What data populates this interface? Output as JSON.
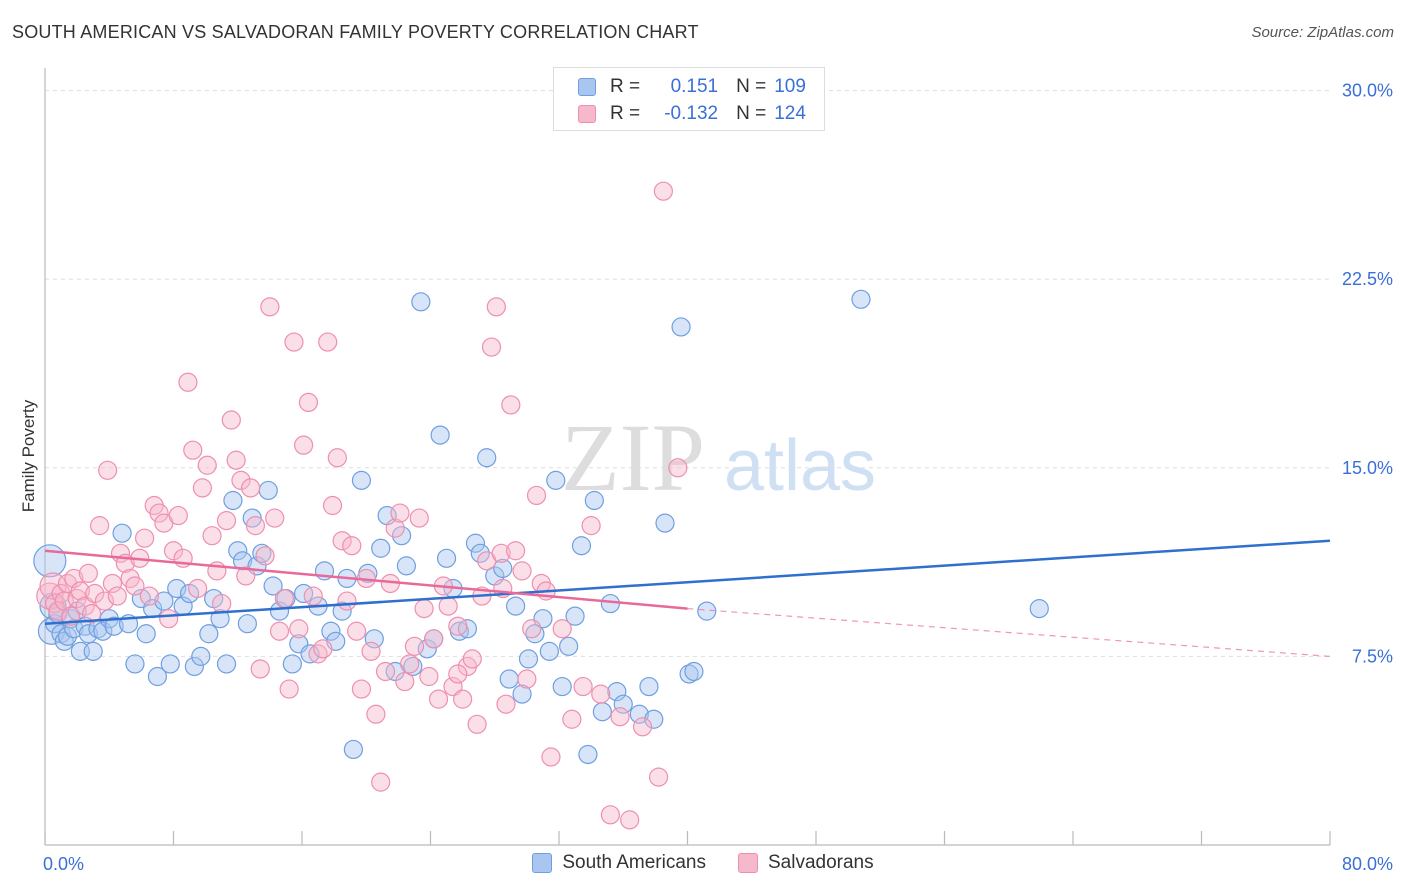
{
  "header": {
    "title": "SOUTH AMERICAN VS SALVADORAN FAMILY POVERTY CORRELATION CHART",
    "source": "Source: ZipAtlas.com"
  },
  "watermark": {
    "zip": "ZIP",
    "atlas": "atlas"
  },
  "legend": {
    "rows": [
      {
        "r_label": "R =",
        "r_value": "0.151",
        "n_label": "N =",
        "n_value": "109"
      },
      {
        "r_label": "R =",
        "r_value": "-0.132",
        "n_label": "N =",
        "n_value": "124"
      }
    ]
  },
  "bottom_legend": {
    "items": [
      "South Americans",
      "Salvadorans"
    ]
  },
  "colors": {
    "blue_fill": "#a8c6f0",
    "blue_stroke": "#6f9fe0",
    "blue_line": "#2f6fcf",
    "pink_fill": "#f6b8cb",
    "pink_stroke": "#ee8fae",
    "pink_line": "#e8699a",
    "axis_text": "#3a6fd8",
    "grid": "#dddddd"
  },
  "chart_data": {
    "type": "scatter",
    "title": "SOUTH AMERICAN VS SALVADORAN FAMILY POVERTY CORRELATION CHART",
    "xlabel": "",
    "ylabel": "Family Poverty",
    "xlim": [
      0,
      80
    ],
    "ylim": [
      0,
      30.5
    ],
    "x_tick_labels": [
      "0.0%",
      "80.0%"
    ],
    "y_ticks": [
      7.5,
      15.0,
      22.5,
      30.0
    ],
    "y_tick_labels": [
      "7.5%",
      "15.0%",
      "22.5%",
      "30.0%"
    ],
    "grid": "horizontal dashed",
    "legend_position": "top-center",
    "series": [
      {
        "name": "South Americans",
        "color": "#a8c6f0",
        "trend": {
          "x": [
            0,
            80
          ],
          "y": [
            8.8,
            12.1
          ],
          "style": "solid"
        },
        "points": [
          [
            0.3,
            11.3
          ],
          [
            0.4,
            8.5
          ],
          [
            0.5,
            9.5
          ],
          [
            0.6,
            8.8
          ],
          [
            0.8,
            9.2
          ],
          [
            1.0,
            8.4
          ],
          [
            1.2,
            8.1
          ],
          [
            1.4,
            8.3
          ],
          [
            1.6,
            9.0
          ],
          [
            1.8,
            8.6
          ],
          [
            2.0,
            9.3
          ],
          [
            2.2,
            7.7
          ],
          [
            2.5,
            8.7
          ],
          [
            2.7,
            8.4
          ],
          [
            3.0,
            7.7
          ],
          [
            3.3,
            8.6
          ],
          [
            3.6,
            8.5
          ],
          [
            4.0,
            9.0
          ],
          [
            4.3,
            8.7
          ],
          [
            4.8,
            12.4
          ],
          [
            5.2,
            8.8
          ],
          [
            5.6,
            7.2
          ],
          [
            6.0,
            9.8
          ],
          [
            6.3,
            8.4
          ],
          [
            6.7,
            9.4
          ],
          [
            7.0,
            6.7
          ],
          [
            7.4,
            9.7
          ],
          [
            7.8,
            7.2
          ],
          [
            8.2,
            10.2
          ],
          [
            8.6,
            9.5
          ],
          [
            9.0,
            10.0
          ],
          [
            9.3,
            7.1
          ],
          [
            9.7,
            7.5
          ],
          [
            10.2,
            8.4
          ],
          [
            10.5,
            9.8
          ],
          [
            10.9,
            9.0
          ],
          [
            11.3,
            7.2
          ],
          [
            11.7,
            13.7
          ],
          [
            12.0,
            11.7
          ],
          [
            12.3,
            11.3
          ],
          [
            12.6,
            8.8
          ],
          [
            12.9,
            13.0
          ],
          [
            13.2,
            11.1
          ],
          [
            13.5,
            11.6
          ],
          [
            13.9,
            14.1
          ],
          [
            14.2,
            10.3
          ],
          [
            14.6,
            9.3
          ],
          [
            15.0,
            9.8
          ],
          [
            15.4,
            7.2
          ],
          [
            15.8,
            8.0
          ],
          [
            16.1,
            10.0
          ],
          [
            16.5,
            7.6
          ],
          [
            17.0,
            9.5
          ],
          [
            17.4,
            10.9
          ],
          [
            17.8,
            8.5
          ],
          [
            18.1,
            8.1
          ],
          [
            18.5,
            9.3
          ],
          [
            18.8,
            10.6
          ],
          [
            19.2,
            3.8
          ],
          [
            19.7,
            14.5
          ],
          [
            20.1,
            10.8
          ],
          [
            20.5,
            8.2
          ],
          [
            20.9,
            11.8
          ],
          [
            21.3,
            13.1
          ],
          [
            21.8,
            6.9
          ],
          [
            22.2,
            12.3
          ],
          [
            22.5,
            11.1
          ],
          [
            22.9,
            7.1
          ],
          [
            23.4,
            21.6
          ],
          [
            23.8,
            7.8
          ],
          [
            24.2,
            8.2
          ],
          [
            24.6,
            16.3
          ],
          [
            25.0,
            11.4
          ],
          [
            25.4,
            10.2
          ],
          [
            25.8,
            8.5
          ],
          [
            26.3,
            8.6
          ],
          [
            26.8,
            12.0
          ],
          [
            27.1,
            11.6
          ],
          [
            27.5,
            15.4
          ],
          [
            28.0,
            10.7
          ],
          [
            28.5,
            11.0
          ],
          [
            28.9,
            6.6
          ],
          [
            29.3,
            9.5
          ],
          [
            29.7,
            6.0
          ],
          [
            30.1,
            7.4
          ],
          [
            30.5,
            8.4
          ],
          [
            31.0,
            9.0
          ],
          [
            31.4,
            7.7
          ],
          [
            31.8,
            14.5
          ],
          [
            32.2,
            6.3
          ],
          [
            32.6,
            7.9
          ],
          [
            33.0,
            9.1
          ],
          [
            33.4,
            11.9
          ],
          [
            33.8,
            3.6
          ],
          [
            34.2,
            13.7
          ],
          [
            34.7,
            5.3
          ],
          [
            35.2,
            9.6
          ],
          [
            35.6,
            6.1
          ],
          [
            36.0,
            5.6
          ],
          [
            37.0,
            5.2
          ],
          [
            37.6,
            6.3
          ],
          [
            38.6,
            12.8
          ],
          [
            39.6,
            20.6
          ],
          [
            40.1,
            6.8
          ],
          [
            40.4,
            6.9
          ],
          [
            41.2,
            9.3
          ],
          [
            50.8,
            21.7
          ],
          [
            61.9,
            9.4
          ],
          [
            37.9,
            5.0
          ]
        ]
      },
      {
        "name": "Salvadorans",
        "color": "#f6b8cb",
        "trend": {
          "x": [
            0,
            40
          ],
          "y": [
            11.7,
            9.4
          ],
          "style": "solid",
          "extension": {
            "x": [
              40,
              80
            ],
            "y": [
              9.4,
              7.5
            ],
            "style": "dashed"
          }
        },
        "points": [
          [
            0.3,
            9.9
          ],
          [
            0.5,
            10.3
          ],
          [
            0.6,
            9.6
          ],
          [
            0.8,
            9.3
          ],
          [
            1.0,
            10.0
          ],
          [
            1.2,
            9.7
          ],
          [
            1.4,
            10.4
          ],
          [
            1.6,
            9.1
          ],
          [
            1.8,
            10.6
          ],
          [
            2.0,
            9.8
          ],
          [
            2.2,
            10.1
          ],
          [
            2.5,
            9.5
          ],
          [
            2.7,
            10.8
          ],
          [
            2.9,
            9.2
          ],
          [
            3.1,
            10.0
          ],
          [
            3.4,
            12.7
          ],
          [
            3.7,
            9.7
          ],
          [
            3.9,
            14.9
          ],
          [
            4.2,
            10.4
          ],
          [
            4.5,
            9.9
          ],
          [
            4.7,
            11.6
          ],
          [
            5.0,
            11.2
          ],
          [
            5.3,
            10.6
          ],
          [
            5.6,
            10.3
          ],
          [
            5.9,
            11.4
          ],
          [
            6.2,
            12.2
          ],
          [
            6.5,
            9.9
          ],
          [
            6.8,
            13.5
          ],
          [
            7.1,
            13.2
          ],
          [
            7.4,
            12.8
          ],
          [
            7.7,
            9.0
          ],
          [
            8.0,
            11.7
          ],
          [
            8.3,
            13.1
          ],
          [
            8.6,
            11.4
          ],
          [
            8.9,
            18.4
          ],
          [
            9.2,
            15.7
          ],
          [
            9.5,
            10.2
          ],
          [
            9.8,
            14.2
          ],
          [
            10.1,
            15.1
          ],
          [
            10.4,
            12.3
          ],
          [
            10.7,
            10.9
          ],
          [
            11.0,
            9.6
          ],
          [
            11.3,
            12.9
          ],
          [
            11.6,
            16.9
          ],
          [
            11.9,
            15.3
          ],
          [
            12.2,
            14.5
          ],
          [
            12.5,
            10.7
          ],
          [
            12.8,
            14.2
          ],
          [
            13.1,
            12.7
          ],
          [
            13.4,
            7.0
          ],
          [
            13.7,
            11.5
          ],
          [
            14.0,
            21.4
          ],
          [
            14.3,
            13.0
          ],
          [
            14.6,
            8.5
          ],
          [
            14.9,
            9.8
          ],
          [
            15.2,
            6.2
          ],
          [
            15.5,
            20.0
          ],
          [
            15.8,
            8.6
          ],
          [
            16.1,
            15.9
          ],
          [
            16.4,
            17.6
          ],
          [
            16.7,
            9.9
          ],
          [
            17.0,
            7.6
          ],
          [
            17.3,
            7.8
          ],
          [
            17.6,
            20.0
          ],
          [
            17.9,
            13.5
          ],
          [
            18.2,
            15.4
          ],
          [
            18.5,
            12.1
          ],
          [
            18.8,
            9.7
          ],
          [
            19.1,
            11.9
          ],
          [
            19.4,
            8.5
          ],
          [
            19.7,
            6.2
          ],
          [
            20.0,
            10.6
          ],
          [
            20.3,
            7.7
          ],
          [
            20.6,
            5.2
          ],
          [
            20.9,
            2.5
          ],
          [
            21.2,
            6.9
          ],
          [
            21.5,
            10.4
          ],
          [
            21.8,
            12.6
          ],
          [
            22.1,
            13.2
          ],
          [
            22.4,
            6.5
          ],
          [
            22.7,
            7.2
          ],
          [
            23.0,
            7.9
          ],
          [
            23.3,
            13.0
          ],
          [
            23.6,
            9.4
          ],
          [
            23.9,
            6.7
          ],
          [
            24.2,
            8.2
          ],
          [
            24.5,
            5.8
          ],
          [
            24.8,
            10.3
          ],
          [
            25.1,
            9.5
          ],
          [
            25.4,
            6.3
          ],
          [
            25.7,
            8.7
          ],
          [
            26.0,
            5.8
          ],
          [
            26.3,
            7.1
          ],
          [
            26.6,
            7.4
          ],
          [
            26.9,
            4.8
          ],
          [
            27.2,
            9.9
          ],
          [
            27.5,
            11.3
          ],
          [
            27.8,
            19.8
          ],
          [
            28.1,
            21.4
          ],
          [
            28.4,
            11.6
          ],
          [
            28.7,
            5.6
          ],
          [
            29.0,
            17.5
          ],
          [
            29.3,
            11.7
          ],
          [
            29.7,
            10.9
          ],
          [
            30.0,
            6.6
          ],
          [
            30.3,
            8.6
          ],
          [
            30.6,
            13.9
          ],
          [
            30.9,
            10.4
          ],
          [
            31.2,
            10.1
          ],
          [
            31.5,
            3.5
          ],
          [
            32.2,
            8.6
          ],
          [
            32.8,
            5.0
          ],
          [
            33.5,
            6.3
          ],
          [
            34.0,
            12.7
          ],
          [
            34.6,
            6.0
          ],
          [
            35.2,
            1.2
          ],
          [
            35.8,
            5.1
          ],
          [
            36.4,
            1.0
          ],
          [
            37.2,
            4.7
          ],
          [
            38.2,
            2.7
          ],
          [
            38.5,
            26.0
          ],
          [
            39.4,
            15.0
          ],
          [
            25.7,
            6.8
          ],
          [
            28.5,
            10.2
          ]
        ]
      }
    ]
  }
}
